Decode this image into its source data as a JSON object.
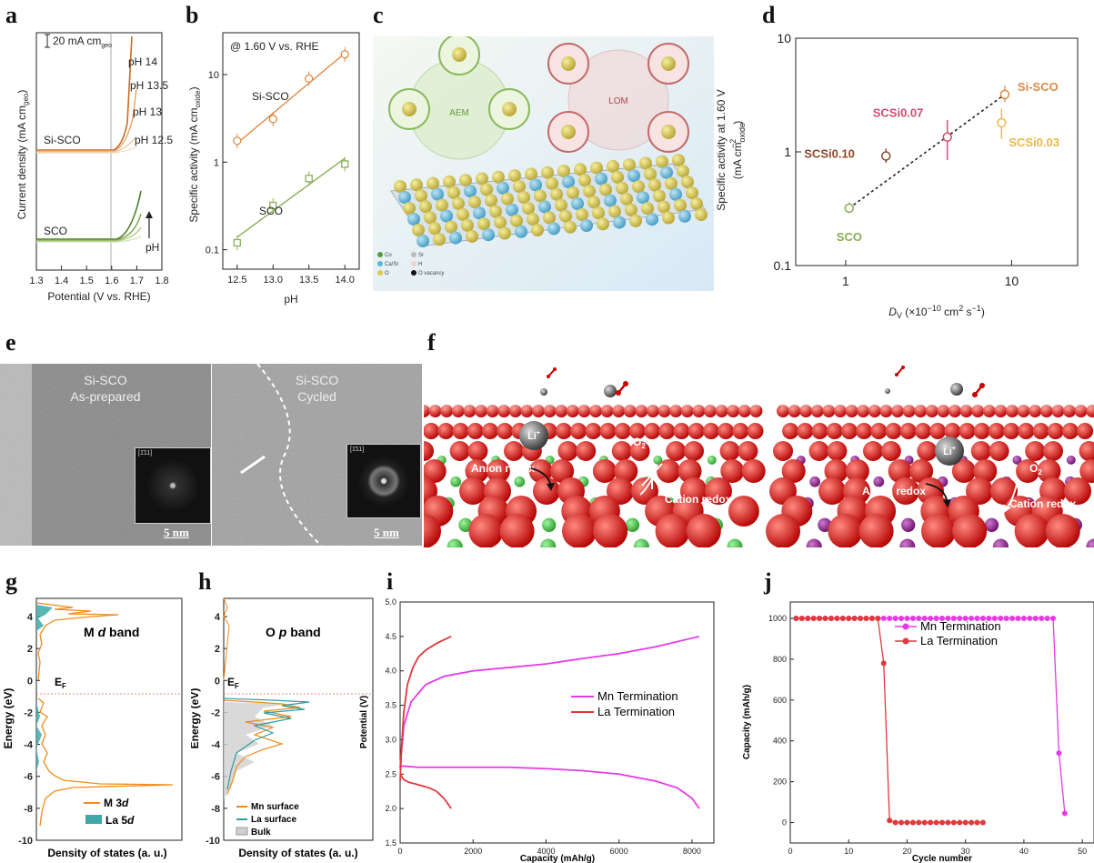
{
  "panels": {
    "a": "a",
    "b": "b",
    "c": "c",
    "d": "d",
    "e": "e",
    "f": "f",
    "g": "g",
    "h": "h",
    "i": "i",
    "j": "j"
  },
  "colors": {
    "orange": "#e08a46",
    "green": "#8aae55",
    "pink": "#d04a6e",
    "brown": "#8b4a2a",
    "yellow": "#e8b84a",
    "magenta": "#e63ae6",
    "red": "#e0393c"
  },
  "panel_a": {
    "ylabel": "Current density (mA cm",
    "ylabel_sub": "geo",
    "ylabel_end": ")",
    "xlabel": "Potential (V vs. RHE)",
    "scale": "20 mA cm",
    "scale_sub": "geo",
    "labels": [
      "pH 14",
      "pH 13.5",
      "pH 13",
      "pH 12.5"
    ],
    "si_sco": "Si-SCO",
    "sco": "SCO",
    "ph": "pH",
    "xticks": [
      "1.3",
      "1.4",
      "1.5",
      "1.6",
      "1.7",
      "1.8"
    ]
  },
  "chart_data": [
    {
      "type": "scatter",
      "title": "@ 1.60 V vs. RHE",
      "xlabel": "pH",
      "ylabel": "Specific activity (mA cm",
      "ylabel_sub": "oxide",
      "ylabel_end": ")",
      "ylim": [
        0.06,
        30
      ],
      "xlim": [
        12.3,
        14.2
      ],
      "log_y": true,
      "xticks": [
        "12.5",
        "13.0",
        "13.5",
        "14.0"
      ],
      "yticks": [
        "0.1",
        "1",
        "10"
      ],
      "series": [
        {
          "name": "Si-SCO",
          "x": [
            12.5,
            13.0,
            13.5,
            14.0
          ],
          "y": [
            1.75,
            3.1,
            9.0,
            17.0
          ]
        },
        {
          "name": "SCO",
          "x": [
            12.5,
            13.0,
            13.5,
            14.0
          ],
          "y": [
            0.12,
            0.32,
            0.65,
            0.95
          ]
        }
      ]
    },
    {
      "type": "scatter",
      "xlabel": "D",
      "xlabel_sub": "V",
      "xlabel_end": " (×10",
      "xlabel_exp": "−10",
      "xlabel_tail": " cm",
      "xlabel_exp2": "2",
      "xlabel_tail2": " s",
      "xlabel_exp3": "−1",
      "xlabel_close": ")",
      "ylabel": "Specific activity at 1.60 V",
      "ylabel2": "(mA cm",
      "ylabel2_sub": "oxide",
      "ylabel2_exp": "−2",
      "ylabel2_end": ")",
      "log_x": true,
      "log_y": true,
      "xlim": [
        0.5,
        25
      ],
      "ylim": [
        0.1,
        10
      ],
      "xticks": [
        "1",
        "10"
      ],
      "yticks": [
        "0.1",
        "1",
        "10"
      ],
      "points": [
        {
          "name": "SCO",
          "x": 1.05,
          "y": 0.32
        },
        {
          "name": "SCSi0.10",
          "x": 1.75,
          "y": 0.92
        },
        {
          "name": "SCSi0.07",
          "x": 4.1,
          "y": 1.35
        },
        {
          "name": "SCSi0.03",
          "x": 8.7,
          "y": 1.8
        },
        {
          "name": "Si-SCO",
          "x": 9.1,
          "y": 3.2
        }
      ]
    },
    {
      "type": "line",
      "xlabel": "Capacity (mAh/g)",
      "ylabel": "Potential (V)",
      "xlim": [
        0,
        8600
      ],
      "ylim": [
        1.5,
        5.0
      ],
      "xticks": [
        "0",
        "2000",
        "4000",
        "6000",
        "8000"
      ],
      "yticks": [
        "1.5",
        "2.0",
        "2.5",
        "3.0",
        "3.5",
        "4.0",
        "4.5",
        "5.0"
      ],
      "series": [
        {
          "name": "Mn Termination",
          "charge_x": [
            0,
            100,
            300,
            700,
            1200,
            2000,
            3000,
            4000,
            5000,
            6000,
            7000,
            8200
          ],
          "charge_y": [
            2.6,
            3.2,
            3.55,
            3.8,
            3.92,
            4.0,
            4.05,
            4.1,
            4.18,
            4.25,
            4.35,
            4.5
          ],
          "discharge_x": [
            0,
            500,
            1000,
            2000,
            3000,
            4000,
            5000,
            6000,
            7000,
            7600,
            8000,
            8200
          ],
          "discharge_y": [
            2.62,
            2.6,
            2.6,
            2.6,
            2.6,
            2.58,
            2.55,
            2.5,
            2.4,
            2.3,
            2.15,
            2.0
          ]
        },
        {
          "name": "La Termination",
          "charge_x": [
            0,
            40,
            100,
            200,
            350,
            500,
            700,
            1000,
            1400
          ],
          "charge_y": [
            2.4,
            2.9,
            3.4,
            3.8,
            4.05,
            4.2,
            4.3,
            4.4,
            4.5
          ],
          "discharge_x": [
            0,
            100,
            250,
            400,
            600,
            800,
            1000,
            1200,
            1400
          ],
          "discharge_y": [
            2.5,
            2.42,
            2.38,
            2.36,
            2.33,
            2.3,
            2.25,
            2.15,
            2.0
          ]
        }
      ]
    },
    {
      "type": "line",
      "xlabel": "Cycle number",
      "ylabel": "Capacity (mAh/g)",
      "xlim": [
        0,
        52
      ],
      "ylim": [
        -100,
        1080
      ],
      "xticks": [
        "0",
        "10",
        "20",
        "30",
        "40",
        "50"
      ],
      "yticks": [
        "0",
        "200",
        "400",
        "600",
        "800",
        "1000"
      ],
      "series": [
        {
          "name": "Mn Termination",
          "x": [
            1,
            2,
            3,
            4,
            5,
            6,
            7,
            8,
            9,
            10,
            11,
            12,
            13,
            14,
            15,
            16,
            17,
            18,
            19,
            20,
            21,
            22,
            23,
            24,
            25,
            26,
            27,
            28,
            29,
            30,
            31,
            32,
            33,
            34,
            35,
            36,
            37,
            38,
            39,
            40,
            41,
            42,
            43,
            44,
            45,
            46,
            47
          ],
          "y": [
            1000,
            1000,
            1000,
            1000,
            1000,
            1000,
            1000,
            1000,
            1000,
            1000,
            1000,
            1000,
            1000,
            1000,
            1000,
            1000,
            1000,
            1000,
            1000,
            1000,
            1000,
            1000,
            1000,
            1000,
            1000,
            1000,
            1000,
            1000,
            1000,
            1000,
            1000,
            1000,
            1000,
            1000,
            1000,
            1000,
            1000,
            1000,
            1000,
            1000,
            1000,
            1000,
            1000,
            1000,
            1000,
            340,
            45
          ]
        },
        {
          "name": "La Termination",
          "x": [
            1,
            2,
            3,
            4,
            5,
            6,
            7,
            8,
            9,
            10,
            11,
            12,
            13,
            14,
            15,
            16,
            17,
            18,
            19,
            20,
            21,
            22,
            23,
            24,
            25,
            26,
            27,
            28,
            29,
            30,
            31,
            32,
            33
          ],
          "y": [
            1000,
            1000,
            1000,
            1000,
            1000,
            1000,
            1000,
            1000,
            1000,
            1000,
            1000,
            1000,
            1000,
            1000,
            1000,
            780,
            10,
            0,
            0,
            0,
            0,
            0,
            0,
            0,
            0,
            0,
            0,
            0,
            0,
            0,
            0,
            0,
            0
          ]
        }
      ]
    }
  ],
  "panel_c": {
    "aem": "AEM",
    "lom": "LOM",
    "legend": [
      "Co",
      "Ca/Sr",
      "O",
      "Sr",
      "H",
      "O vacancy"
    ]
  },
  "panel_e": {
    "left_title": "Si-SCO",
    "left_sub": "As-prepared",
    "right_title": "Si-SCO",
    "right_sub": "Cycled",
    "scale": "5 nm",
    "fft_label": "[1̄11]"
  },
  "panel_f": {
    "li": "Li",
    "li_sup": "+",
    "o2": "O",
    "o2_sub": "2",
    "anion": "Anion redox",
    "cation": "Cation redox"
  },
  "panel_g": {
    "title": "M",
    "title_it": "d",
    "title_end": " band",
    "ef": "E",
    "ef_sub": "F",
    "ylabel": "Energy (eV)",
    "xlabel": "Density of states (a. u.)",
    "legend": [
      "M 3",
      "La 5"
    ],
    "legend_it": "d",
    "yticks": [
      "4",
      "2",
      "0",
      "-2",
      "-4",
      "-6",
      "-8",
      "-10"
    ]
  },
  "panel_h": {
    "title": "O",
    "title_it": "p",
    "title_end": " band",
    "ef": "E",
    "ef_sub": "F",
    "ylabel": "Energy (eV)",
    "xlabel": "Density of states (a. u.)",
    "legend": [
      "Mn surface",
      "La surface",
      "Bulk"
    ],
    "yticks": [
      "4",
      "2",
      "0",
      "-2",
      "-4",
      "-6",
      "-8",
      "-10"
    ]
  }
}
